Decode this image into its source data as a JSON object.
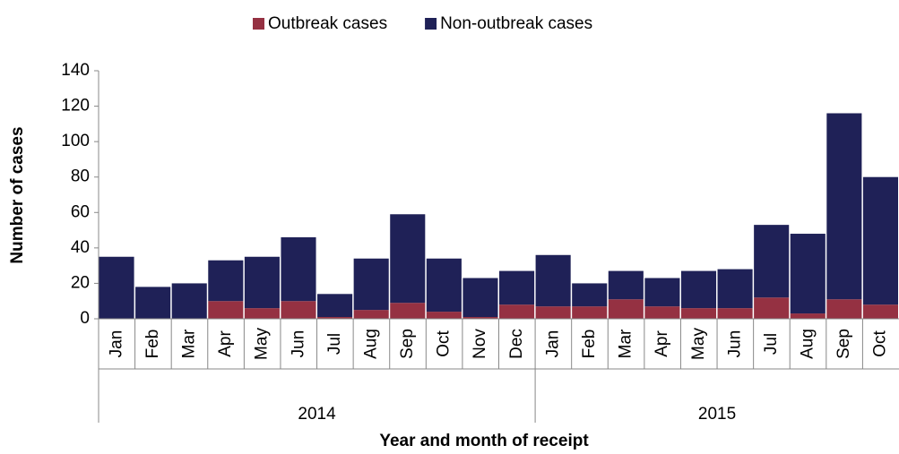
{
  "chart_data": {
    "type": "stacked-bar",
    "x_label": "Year and month of receipt",
    "y_label": "Number of cases",
    "groups": [
      {
        "label": "2014",
        "months": [
          "Jan",
          "Feb",
          "Mar",
          "Apr",
          "May",
          "Jun",
          "Jul",
          "Aug",
          "Sep",
          "Oct",
          "Nov",
          "Dec"
        ]
      },
      {
        "label": "2015",
        "months": [
          "Jan",
          "Feb",
          "Mar",
          "Apr",
          "May",
          "Jun",
          "Jul",
          "Aug",
          "Sep",
          "Oct"
        ]
      }
    ],
    "series": [
      {
        "name": "Outbreak cases",
        "color": "#953142",
        "values": [
          0,
          0,
          0,
          10,
          6,
          10,
          1,
          5,
          9,
          4,
          1,
          8,
          7,
          7,
          11,
          7,
          6,
          6,
          12,
          3,
          11,
          8
        ]
      },
      {
        "name": "Non-outbreak cases",
        "color": "#1f2157",
        "values": [
          35,
          18,
          20,
          23,
          29,
          36,
          13,
          29,
          50,
          30,
          22,
          19,
          29,
          13,
          16,
          16,
          21,
          22,
          41,
          45,
          105,
          72
        ]
      }
    ],
    "ylim": [
      0,
      140
    ],
    "yticks": [
      0,
      20,
      40,
      60,
      80,
      100,
      120,
      140
    ],
    "legend": "top"
  }
}
